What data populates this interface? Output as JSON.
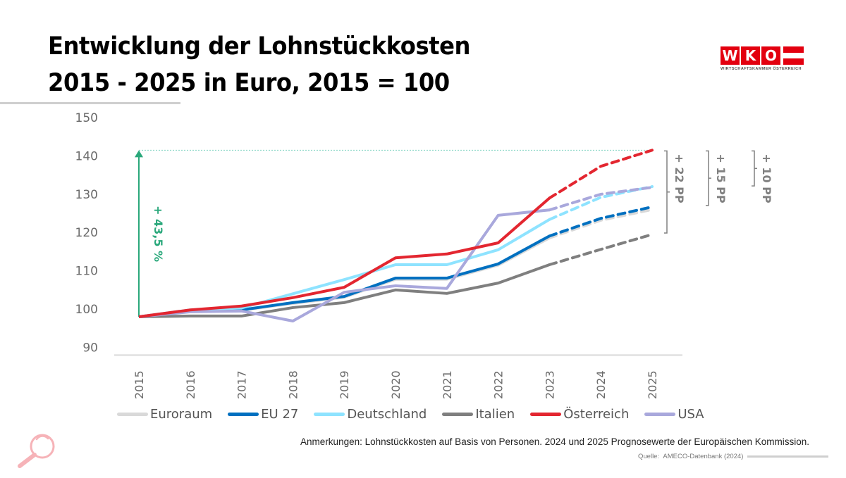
{
  "header": {
    "title_line1": "Entwicklung der Lohnstückkosten",
    "title_line2": "2015 - 2025 in Euro, 2015 = 100"
  },
  "logo": {
    "letters": [
      "W",
      "K",
      "O"
    ],
    "subtitle": "WIRTSCHAFTSKAMMER ÖSTERREICH",
    "color": "#e3000f"
  },
  "annotations": {
    "total_growth_label": "+ 43,5 %",
    "total_growth_color": "#2aa87b",
    "pp_brackets": [
      {
        "label": "+ 10 PP",
        "from_series": "USA"
      },
      {
        "label": "+ 15 PP",
        "from_series": "EU 27"
      },
      {
        "label": "+ 22 PP",
        "from_series": "Italien"
      }
    ],
    "pp_color": "#808080"
  },
  "chart_data": {
    "type": "line",
    "title": "Entwicklung der Lohnstückkosten 2015 - 2025 in Euro, 2015 = 100",
    "xlabel": "",
    "ylabel": "",
    "x": [
      "2015",
      "2016",
      "2017",
      "2018",
      "2019",
      "2020",
      "2021",
      "2022",
      "2023",
      "2024",
      "2025"
    ],
    "ylim": [
      90,
      150
    ],
    "yticks": [
      90,
      100,
      110,
      120,
      130,
      140,
      150
    ],
    "forecast_from_index": 8,
    "forecast_note": "2024 and 2025 dashed (forecast)",
    "grid": false,
    "legend_position": "bottom",
    "series": [
      {
        "name": "Euroraum",
        "color": "#d9d9d9",
        "values": [
          100,
          101.6,
          101.7,
          103.5,
          105.1,
          109.8,
          109.8,
          113.5,
          120.6,
          125.2,
          128.0
        ]
      },
      {
        "name": "EU 27",
        "color": "#0070c0",
        "values": [
          100,
          101.7,
          101.8,
          103.7,
          105.3,
          110.1,
          110.1,
          113.8,
          121.1,
          125.7,
          128.7
        ]
      },
      {
        "name": "Deutschland",
        "color": "#8ee3ff",
        "values": [
          100,
          101.8,
          102.3,
          106.0,
          109.7,
          113.6,
          113.6,
          117.5,
          125.4,
          131.2,
          134.0
        ]
      },
      {
        "name": "Italien",
        "color": "#7f7f7f",
        "values": [
          100,
          100.2,
          100.2,
          102.4,
          103.7,
          107.0,
          106.1,
          108.8,
          113.6,
          117.6,
          121.5
        ]
      },
      {
        "name": "Österreich",
        "color": "#e32630",
        "values": [
          100,
          101.8,
          102.8,
          105.0,
          107.7,
          115.4,
          116.4,
          119.3,
          131.0,
          139.3,
          143.5
        ]
      },
      {
        "name": "USA",
        "color": "#a9a8dc",
        "values": [
          100,
          101.3,
          101.5,
          98.9,
          106.4,
          108.1,
          107.4,
          126.5,
          127.9,
          132.0,
          133.8
        ]
      }
    ]
  },
  "footer": {
    "note": "Anmerkungen: Lohnstückkosten auf Basis von Personen. 2024 und 2025 Prognosewerte der Europäischen Kommission.",
    "source_label": "Quelle:",
    "source_value": "AMECO-Datenbank (2024)"
  }
}
